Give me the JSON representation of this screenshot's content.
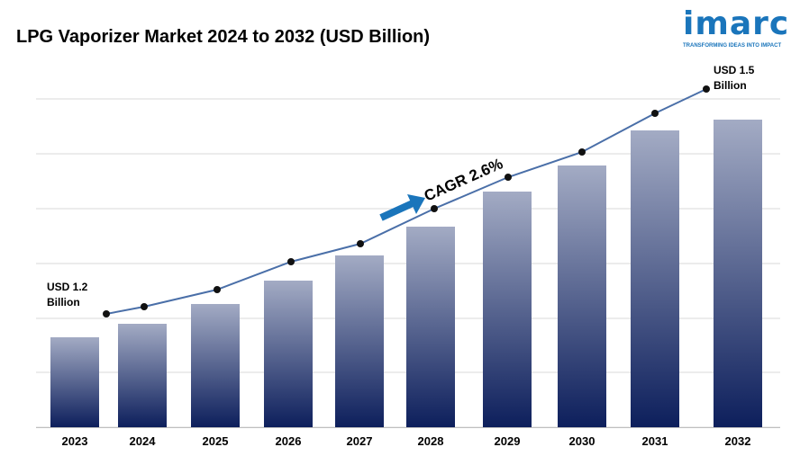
{
  "title": "LPG Vaporizer Market 2024 to 2032 (USD Billion)",
  "logo": {
    "wordmark": "imarc",
    "tagline": "TRANSFORMING IDEAS INTO IMPACT",
    "color": "#1a75bb"
  },
  "chart_data": {
    "type": "bar",
    "title": "LPG Vaporizer Market 2024 to 2032 (USD Billion)",
    "categories": [
      "2023",
      "2024",
      "2025",
      "2026",
      "2027",
      "2028",
      "2029",
      "2030",
      "2031",
      "2032"
    ],
    "series": [
      {
        "values": [
          1.2,
          1.23,
          1.26,
          1.3,
          1.34,
          1.37,
          1.41,
          1.44,
          1.48,
          1.5
        ]
      }
    ],
    "ylim": [
      1.0,
      1.56
    ],
    "grid": true,
    "annotations": {
      "start_label": [
        "USD 1.2",
        "Billion"
      ],
      "end_label": [
        "USD 1.5",
        "Billion"
      ],
      "cagr": "CAGR 2.6%"
    },
    "colors": {
      "bar_top": "#a3abc4",
      "bar_bottom": "#0d1f5c",
      "line": "#4a6fa8",
      "marker": "#111111",
      "arrow": "#1a75bb",
      "grid": "#d9d9d9"
    }
  }
}
